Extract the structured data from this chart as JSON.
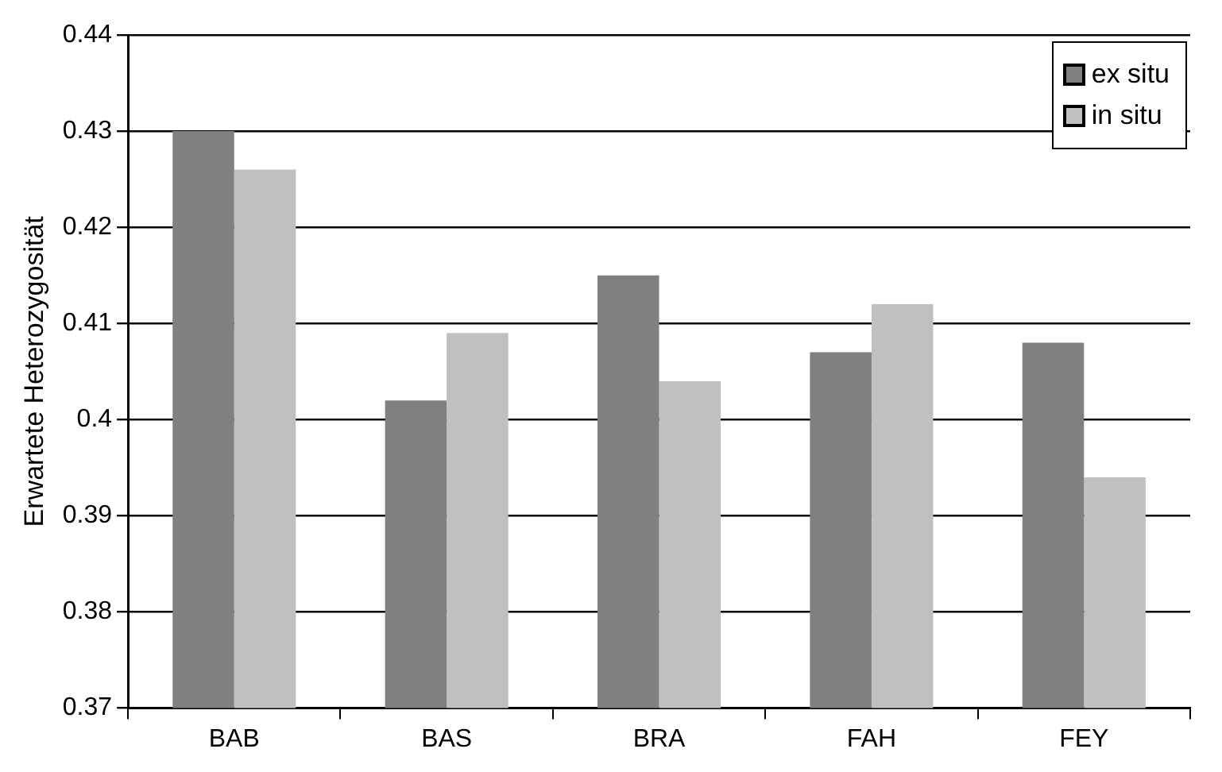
{
  "chart_data": {
    "type": "bar",
    "ylabel": "Erwartete Heterozygosität",
    "categories": [
      "BAB",
      "BAS",
      "BRA",
      "FAH",
      "FEY"
    ],
    "series": [
      {
        "name": "ex situ",
        "color": "#808080",
        "values": [
          0.43,
          0.402,
          0.415,
          0.407,
          0.408
        ]
      },
      {
        "name": "in situ",
        "color": "#c0c0c0",
        "values": [
          0.426,
          0.409,
          0.404,
          0.412,
          0.394
        ]
      }
    ],
    "ylim": [
      0.37,
      0.44
    ],
    "yticks": [
      0.37,
      0.38,
      0.39,
      0.4,
      0.41,
      0.42,
      0.43,
      0.44
    ],
    "grid": "y",
    "legend": "top right"
  }
}
